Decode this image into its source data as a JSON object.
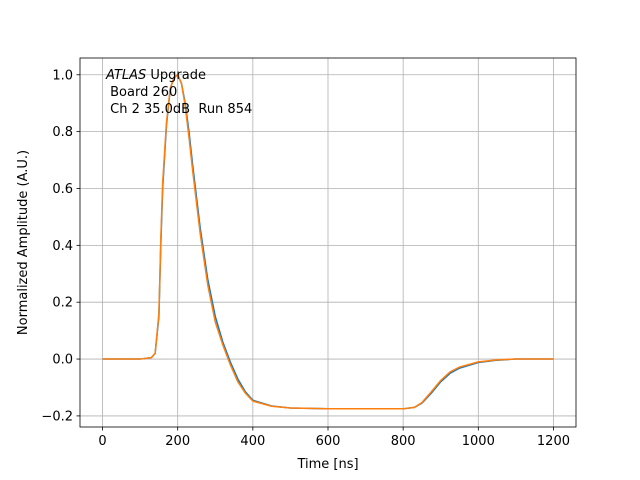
{
  "chart_data": {
    "type": "line",
    "xlabel": "Time [ns]",
    "ylabel": "Normalized Amplitude (A.U.)",
    "annotation": {
      "italic": "ATLAS",
      "lines": [
        " Upgrade",
        " Board 260",
        " Ch 2 35.0dB  Run 854"
      ]
    },
    "x": [
      0,
      50,
      100,
      130,
      140,
      150,
      155,
      160,
      170,
      180,
      190,
      200,
      210,
      220,
      230,
      240,
      260,
      280,
      300,
      320,
      340,
      360,
      380,
      400,
      450,
      500,
      600,
      700,
      800,
      830,
      850,
      875,
      900,
      925,
      950,
      1000,
      1050,
      1100,
      1200
    ],
    "series": [
      {
        "color": "#1f77b4",
        "values": [
          0,
          0,
          0,
          0.005,
          0.02,
          0.15,
          0.4,
          0.6,
          0.82,
          0.95,
          0.99,
          1.0,
          0.97,
          0.9,
          0.8,
          0.68,
          0.46,
          0.28,
          0.15,
          0.06,
          -0.01,
          -0.07,
          -0.115,
          -0.145,
          -0.165,
          -0.172,
          -0.175,
          -0.175,
          -0.175,
          -0.17,
          -0.155,
          -0.12,
          -0.08,
          -0.05,
          -0.032,
          -0.012,
          -0.004,
          0,
          0
        ]
      },
      {
        "color": "#ff7f0e",
        "values": [
          0,
          0,
          0,
          0.005,
          0.02,
          0.16,
          0.42,
          0.62,
          0.83,
          0.95,
          0.99,
          1.0,
          0.97,
          0.89,
          0.78,
          0.66,
          0.44,
          0.26,
          0.13,
          0.05,
          -0.02,
          -0.08,
          -0.12,
          -0.148,
          -0.166,
          -0.172,
          -0.175,
          -0.175,
          -0.175,
          -0.17,
          -0.153,
          -0.115,
          -0.075,
          -0.045,
          -0.028,
          -0.01,
          -0.003,
          0,
          0
        ]
      }
    ],
    "xlim": [
      -60,
      1260
    ],
    "ylim": [
      -0.239,
      1.059
    ],
    "xticks": [
      0,
      200,
      400,
      600,
      800,
      1000,
      1200
    ],
    "yticks": [
      {
        "value": -0.2,
        "label": "−0.2"
      },
      {
        "value": 0,
        "label": "0.0"
      },
      {
        "value": 0.2,
        "label": "0.2"
      },
      {
        "value": 0.4,
        "label": "0.4"
      },
      {
        "value": 0.6,
        "label": "0.6"
      },
      {
        "value": 0.8,
        "label": "0.8"
      },
      {
        "value": 1.0,
        "label": "1.0"
      }
    ],
    "grid": true
  }
}
